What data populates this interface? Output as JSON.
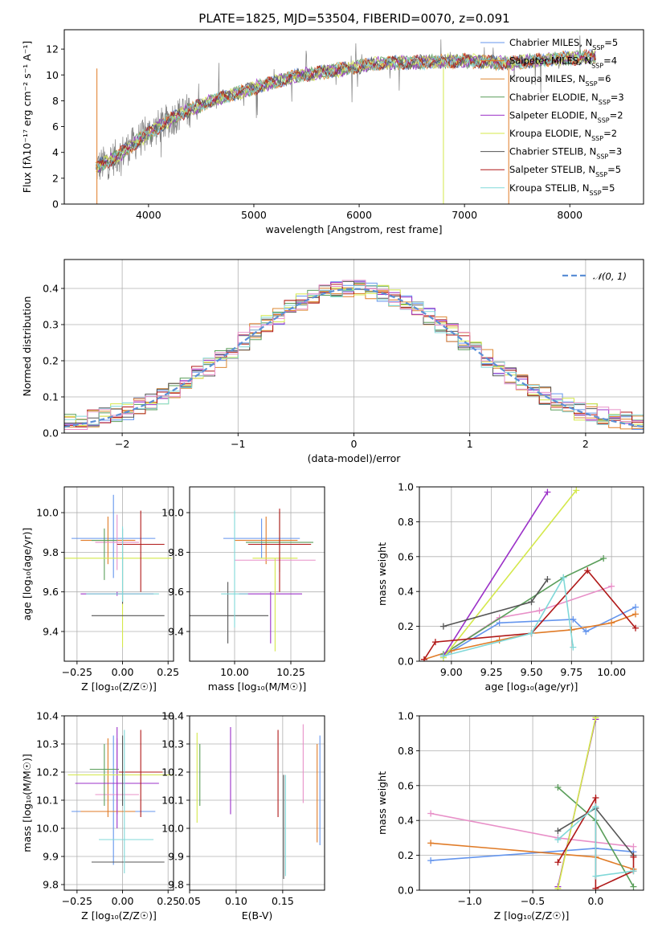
{
  "chart_data": [
    {
      "type": "line",
      "title": "PLATE=1825, MJD=53504, FIBERID=0070, z=0.091",
      "xlabel": "wavelength [Angstrom, rest frame]",
      "ylabel": "Flux [fλ10⁻¹⁷ erg cm⁻² s⁻¹ A⁻¹]",
      "xlim": [
        3200,
        8700
      ],
      "ylim": [
        0,
        13.5
      ],
      "xticks": [
        4000,
        5000,
        6000,
        7000,
        8000
      ],
      "yticks": [
        0,
        2,
        4,
        6,
        8,
        10,
        12
      ],
      "grid": false,
      "legend": "upper-right",
      "data_color": "#808080",
      "continuum": {
        "x": [
          3500,
          3700,
          4000,
          4300,
          4600,
          5000,
          5400,
          5800,
          6200,
          6600,
          7000,
          7400,
          7800,
          8200
        ],
        "y": [
          2.8,
          3.7,
          5.5,
          7.0,
          8.0,
          9.0,
          9.9,
          10.4,
          10.9,
          11.0,
          11.1,
          10.9,
          11.2,
          11.4
        ]
      },
      "series": [
        {
          "name": "Chabrier MILES, N_SSP=5",
          "color": "#6495ed"
        },
        {
          "name": "Salpeter MILES, N_SSP=4",
          "color": "#e07b27"
        },
        {
          "name": "Kroupa MILES, N_SSP=6",
          "color": "#dd8833"
        },
        {
          "name": "Chabrier ELODIE, N_SSP=3",
          "color": "#5a9e5a"
        },
        {
          "name": "Salpeter ELODIE, N_SSP=2",
          "color": "#9b30c8"
        },
        {
          "name": "Kroupa ELODIE, N_SSP=2",
          "color": "#d4e84a"
        },
        {
          "name": "Chabrier STELIB, N_SSP=3",
          "color": "#555555"
        },
        {
          "name": "Salpeter STELIB, N_SSP=5",
          "color": "#b01818"
        },
        {
          "name": "Kroupa STELIB, N_SSP=5",
          "color": "#80d8d8"
        }
      ]
    },
    {
      "type": "line",
      "xlabel": "(data-model)/error",
      "ylabel": "Normed distribution",
      "xlim": [
        -2.5,
        2.5
      ],
      "ylim": [
        0,
        0.48
      ],
      "xticks": [
        -2,
        -1,
        0,
        1,
        2
      ],
      "yticks": [
        0.0,
        0.1,
        0.2,
        0.3,
        0.4
      ],
      "grid": true,
      "legend": "upper-right",
      "reference": {
        "name": "𝒩(0, 1)",
        "color": "#5b8fd6",
        "mean": 0,
        "sigma": 1
      },
      "histogram_bin_width": 0.1
    },
    {
      "type": "scatter",
      "xlabel": "Z [log₁₀(Z/Z☉)]",
      "ylabel": "age  [log₁₀(age/yr)]",
      "xlim": [
        -0.32,
        0.28
      ],
      "ylim": [
        9.25,
        10.13
      ],
      "xticks": [
        -0.25,
        0.0,
        0.25
      ],
      "yticks": [
        9.4,
        9.6,
        9.8,
        10.0
      ],
      "grid": true,
      "points": [
        {
          "x": -0.05,
          "y": 9.87,
          "xerr": 0.23,
          "yerr": [
            0.2,
            0.22
          ],
          "color": "#6495ed"
        },
        {
          "x": -0.08,
          "y": 9.86,
          "xerr": 0.15,
          "yerr": [
            0.12,
            0.12
          ],
          "color": "#e07b27"
        },
        {
          "x": -0.03,
          "y": 9.85,
          "xerr": 0.12,
          "yerr": [
            0.14,
            0.14
          ],
          "color": "#e890c8"
        },
        {
          "x": -0.1,
          "y": 9.86,
          "xerr": 0.07,
          "yerr": [
            0.2,
            0.06
          ],
          "color": "#5a9e5a"
        },
        {
          "x": -0.03,
          "y": 9.59,
          "xerr": 0.2,
          "yerr": [
            0.01,
            0.01
          ],
          "color": "#9b30c8"
        },
        {
          "x": -0.05,
          "y": 9.77,
          "xerr": 0.32,
          "yerr": [
            0.0,
            0.0
          ],
          "color": "#d4e84a"
        },
        {
          "x": 0.0,
          "y": 9.77,
          "xerr": 0.0,
          "yerr": [
            0.45,
            0.1
          ],
          "color": "#d4e84a"
        },
        {
          "x": 0.03,
          "y": 9.48,
          "xerr": 0.2,
          "yerr": [
            0.0,
            0.0
          ],
          "color": "#555555"
        },
        {
          "x": 0.0,
          "y": 9.8,
          "xerr": 0.0,
          "yerr": [
            0.26,
            0.12
          ],
          "color": "#555555"
        },
        {
          "x": 0.1,
          "y": 9.84,
          "xerr": 0.13,
          "yerr": [
            0.24,
            0.17
          ],
          "color": "#b01818"
        },
        {
          "x": 0.0,
          "y": 9.59,
          "xerr": 0.2,
          "yerr": [
            0.0,
            0.0
          ],
          "color": "#80d8d8"
        },
        {
          "x": 0.0,
          "y": 9.75,
          "xerr": 0.0,
          "yerr": [
            0.2,
            0.18
          ],
          "color": "#80d8d8"
        }
      ]
    },
    {
      "type": "scatter",
      "xlabel": "mass [log₁₀(M/M☉)]",
      "ylabel": "",
      "xlim": [
        9.8,
        10.4
      ],
      "ylim": [
        9.25,
        10.13
      ],
      "xticks": [
        10.0,
        10.25
      ],
      "yticks": [
        9.4,
        9.6,
        9.8,
        10.0
      ],
      "grid": true,
      "points": [
        {
          "x": 10.12,
          "y": 9.87,
          "xerr": 0.17,
          "yerr": [
            0.1,
            0.1
          ],
          "color": "#6495ed"
        },
        {
          "x": 10.14,
          "y": 9.86,
          "xerr": 0.14,
          "yerr": [
            0.12,
            0.12
          ],
          "color": "#e07b27"
        },
        {
          "x": 10.18,
          "y": 9.76,
          "xerr": 0.18,
          "yerr": [
            0.0,
            0.0
          ],
          "color": "#e890c8"
        },
        {
          "x": 10.2,
          "y": 9.85,
          "xerr": 0.15,
          "yerr": [
            0.15,
            0.15
          ],
          "color": "#5a9e5a"
        },
        {
          "x": 10.16,
          "y": 9.59,
          "xerr": 0.14,
          "yerr": [
            0.25,
            0.01
          ],
          "color": "#9b30c8"
        },
        {
          "x": 10.18,
          "y": 9.77,
          "xerr": 0.1,
          "yerr": [
            0.47,
            0.0
          ],
          "color": "#d4e84a"
        },
        {
          "x": 9.97,
          "y": 9.48,
          "xerr": 0.18,
          "yerr": [
            0.14,
            0.17
          ],
          "color": "#555555"
        },
        {
          "x": 10.2,
          "y": 9.84,
          "xerr": 0.14,
          "yerr": [
            0.24,
            0.18
          ],
          "color": "#b01818"
        },
        {
          "x": 10.0,
          "y": 9.59,
          "xerr": 0.06,
          "yerr": [
            0.17,
            0.42
          ],
          "color": "#80d8d8"
        }
      ]
    },
    {
      "type": "line",
      "xlabel": "age  [log₁₀(age/yr)]",
      "ylabel": "mass weight",
      "xlim": [
        8.8,
        10.2
      ],
      "ylim": [
        0,
        1
      ],
      "xticks": [
        9.0,
        9.25,
        9.5,
        9.75,
        10.0
      ],
      "yticks": [
        0.0,
        0.2,
        0.4,
        0.6,
        0.8,
        1.0
      ],
      "grid": true,
      "series": [
        {
          "color": "#6495ed",
          "x": [
            8.95,
            9.3,
            9.76,
            9.84,
            10.15
          ],
          "y": [
            0.03,
            0.22,
            0.24,
            0.17,
            0.31
          ]
        },
        {
          "color": "#e07b27",
          "x": [
            8.83,
            9.0,
            9.3,
            9.5,
            9.75,
            10.0,
            10.15
          ],
          "y": [
            0.01,
            0.06,
            0.12,
            0.16,
            0.18,
            0.22,
            0.27
          ]
        },
        {
          "color": "#e890c8",
          "x": [
            8.95,
            9.3,
            9.55,
            10.0
          ],
          "y": [
            0.04,
            0.25,
            0.29,
            0.43
          ]
        },
        {
          "color": "#5a9e5a",
          "x": [
            8.95,
            9.7,
            9.95
          ],
          "y": [
            0.04,
            0.48,
            0.59
          ]
        },
        {
          "color": "#9b30c8",
          "x": [
            8.95,
            9.6
          ],
          "y": [
            0.03,
            0.97
          ]
        },
        {
          "color": "#d4e84a",
          "x": [
            8.95,
            9.78
          ],
          "y": [
            0.02,
            0.98
          ]
        },
        {
          "color": "#555555",
          "x": [
            8.95,
            9.5,
            9.6
          ],
          "y": [
            0.2,
            0.34,
            0.47
          ]
        },
        {
          "color": "#b01818",
          "x": [
            8.83,
            8.9,
            9.5,
            9.85,
            10.15
          ],
          "y": [
            0.01,
            0.11,
            0.16,
            0.52,
            0.19
          ]
        },
        {
          "color": "#80d8d8",
          "x": [
            8.95,
            9.5,
            9.7,
            9.76
          ],
          "y": [
            0.03,
            0.16,
            0.48,
            0.08
          ]
        }
      ]
    },
    {
      "type": "scatter",
      "xlabel": "Z [log₁₀(Z/Z☉)]",
      "ylabel": "mass [log₁₀(M/M☉)]",
      "xlim": [
        -0.32,
        0.28
      ],
      "ylim": [
        9.78,
        10.4
      ],
      "xticks": [
        -0.25,
        0.0,
        0.25
      ],
      "yticks": [
        9.8,
        9.9,
        10.0,
        10.1,
        10.2,
        10.3,
        10.4
      ],
      "grid": true,
      "points": [
        {
          "x": -0.05,
          "y": 10.06,
          "xerr": 0.23,
          "yerr": [
            0.19,
            0.27
          ],
          "color": "#6495ed"
        },
        {
          "x": -0.08,
          "y": 10.06,
          "xerr": 0.15,
          "yerr": [
            0.02,
            0.26
          ],
          "color": "#e07b27"
        },
        {
          "x": -0.03,
          "y": 10.12,
          "xerr": 0.12,
          "yerr": [
            0.07,
            0.2
          ],
          "color": "#e890c8"
        },
        {
          "x": -0.1,
          "y": 10.21,
          "xerr": 0.08,
          "yerr": [
            0.13,
            0.09
          ],
          "color": "#5a9e5a"
        },
        {
          "x": -0.03,
          "y": 10.16,
          "xerr": 0.23,
          "yerr": [
            0.16,
            0.2
          ],
          "color": "#9b30c8"
        },
        {
          "x": 0.0,
          "y": 10.19,
          "xerr": 0.3,
          "yerr": [
            0.0,
            0.0
          ],
          "color": "#d4e84a"
        },
        {
          "x": 0.03,
          "y": 9.88,
          "xerr": 0.2,
          "yerr": [
            0.0,
            0.0
          ],
          "color": "#555555"
        },
        {
          "x": 0.0,
          "y": 10.2,
          "xerr": 0.0,
          "yerr": [
            0.12,
            0.13
          ],
          "color": "#555555"
        },
        {
          "x": 0.1,
          "y": 10.2,
          "xerr": 0.12,
          "yerr": [
            0.16,
            0.15
          ],
          "color": "#b01818"
        },
        {
          "x": 0.02,
          "y": 9.96,
          "xerr": 0.15,
          "yerr": [
            0.0,
            0.0
          ],
          "color": "#80d8d8"
        },
        {
          "x": 0.01,
          "y": 10.1,
          "xerr": 0.0,
          "yerr": [
            0.26,
            0.25
          ],
          "color": "#80d8d8"
        }
      ]
    },
    {
      "type": "scatter",
      "xlabel": "E(B-V)",
      "ylabel": "",
      "xlim": [
        0.05,
        0.195
      ],
      "ylim": [
        9.78,
        10.4
      ],
      "xticks": [
        0.05,
        0.1,
        0.15
      ],
      "yticks": [
        9.8,
        9.9,
        10.0,
        10.1,
        10.2,
        10.3,
        10.4
      ],
      "grid": true,
      "points": [
        {
          "x": 0.19,
          "y": 10.13,
          "yerr": [
            0.19,
            0.2
          ],
          "color": "#6495ed"
        },
        {
          "x": 0.187,
          "y": 10.1,
          "yerr": [
            0.15,
            0.2
          ],
          "color": "#e07b27"
        },
        {
          "x": 0.172,
          "y": 10.19,
          "yerr": [
            0.1,
            0.18
          ],
          "color": "#e890c8"
        },
        {
          "x": 0.061,
          "y": 10.2,
          "yerr": [
            0.12,
            0.1
          ],
          "color": "#5a9e5a"
        },
        {
          "x": 0.094,
          "y": 10.2,
          "yerr": [
            0.15,
            0.16
          ],
          "color": "#9b30c8"
        },
        {
          "x": 0.058,
          "y": 10.18,
          "yerr": [
            0.16,
            0.16
          ],
          "color": "#d4e84a"
        },
        {
          "x": 0.151,
          "y": 10.0,
          "yerr": [
            0.18,
            0.19
          ],
          "color": "#555555"
        },
        {
          "x": 0.145,
          "y": 10.2,
          "yerr": [
            0.16,
            0.15
          ],
          "color": "#b01818"
        },
        {
          "x": 0.153,
          "y": 10.0,
          "yerr": [
            0.17,
            0.19
          ],
          "color": "#80d8d8"
        }
      ]
    },
    {
      "type": "line",
      "xlabel": "Z [log₁₀(Z/Z☉)]",
      "ylabel": "mass weight",
      "xlim": [
        -1.4,
        0.38
      ],
      "ylim": [
        0,
        1
      ],
      "xticks": [
        -1.0,
        -0.5,
        0.0
      ],
      "yticks": [
        0.0,
        0.2,
        0.4,
        0.6,
        0.8,
        1.0
      ],
      "grid": true,
      "series": [
        {
          "color": "#6495ed",
          "x": [
            -1.31,
            0.0,
            0.3
          ],
          "y": [
            0.17,
            0.24,
            0.22
          ]
        },
        {
          "color": "#e07b27",
          "x": [
            -1.31,
            0.0,
            0.3
          ],
          "y": [
            0.27,
            0.19,
            0.12
          ]
        },
        {
          "color": "#e890c8",
          "x": [
            -1.31,
            -0.3,
            0.3
          ],
          "y": [
            0.44,
            0.3,
            0.25
          ]
        },
        {
          "color": "#5a9e5a",
          "x": [
            -0.3,
            0.0,
            0.3
          ],
          "y": [
            0.59,
            0.4,
            0.02
          ]
        },
        {
          "color": "#9b30c8",
          "x": [
            -0.3,
            0.0
          ],
          "y": [
            0.02,
            0.98
          ]
        },
        {
          "color": "#d4e84a",
          "x": [
            -0.3,
            0.0
          ],
          "y": [
            0.01,
            0.99
          ]
        },
        {
          "color": "#555555",
          "x": [
            -0.3,
            0.0,
            0.3
          ],
          "y": [
            0.34,
            0.47,
            0.2
          ]
        },
        {
          "color": "#b01818",
          "x": [
            -0.3,
            0.0,
            0.0,
            0.3,
            0.3
          ],
          "y": [
            0.16,
            0.53,
            0.01,
            0.11,
            0.19
          ]
        },
        {
          "color": "#80d8d8",
          "x": [
            -0.3,
            0.0,
            0.0,
            0.3
          ],
          "y": [
            0.29,
            0.48,
            0.08,
            0.11
          ]
        }
      ]
    }
  ]
}
